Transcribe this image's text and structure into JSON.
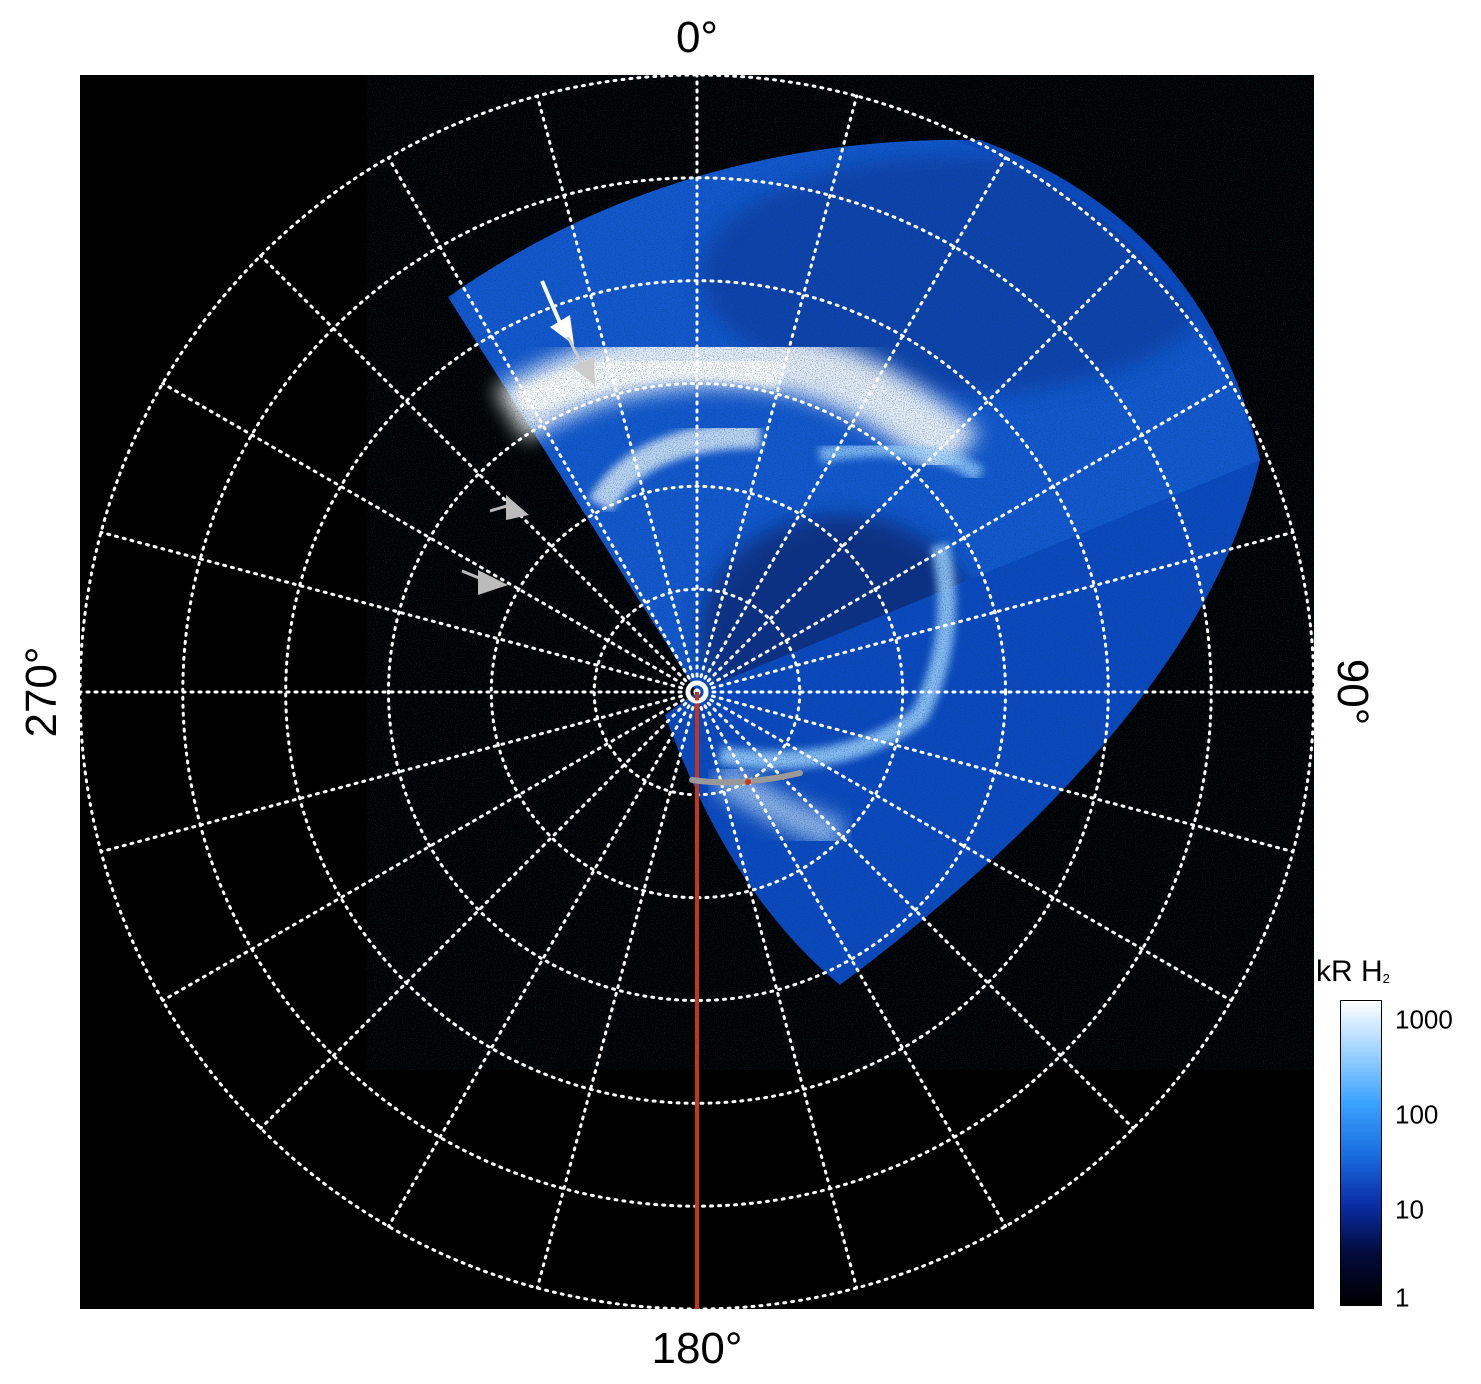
{
  "figure": {
    "azimuth_labels": {
      "top": "0°",
      "right": "90°",
      "bottom": "180°",
      "left": "270°"
    },
    "colorbar": {
      "title": "kR H",
      "title_subscript": "2",
      "scale": "log",
      "range": [
        1,
        2000
      ],
      "ticks": [
        "1000",
        "100",
        "10",
        "1"
      ],
      "tick_values": [
        1000,
        100,
        10,
        1
      ],
      "colors": [
        "#000000",
        "#030a3a",
        "#0a2ea8",
        "#1a6fe0",
        "#3aa3ff",
        "#9fd3ff",
        "#ffffff"
      ]
    },
    "grid": {
      "style": "dotted",
      "color": "#ffffff",
      "rings": 6,
      "spokes": 24
    },
    "colors": {
      "background": "#000000",
      "red_line": "#c8331a",
      "gray_track": "#999999",
      "arrow_white": "#ffffff",
      "arrow_gray": "#bbbbbb"
    },
    "arrows": [
      {
        "color": "white",
        "label": "arrow-white"
      },
      {
        "color": "gray",
        "label": "arrow-gray-1"
      },
      {
        "color": "gray",
        "label": "arrow-gray-2"
      },
      {
        "color": "gray",
        "label": "arrow-gray-3"
      }
    ]
  }
}
